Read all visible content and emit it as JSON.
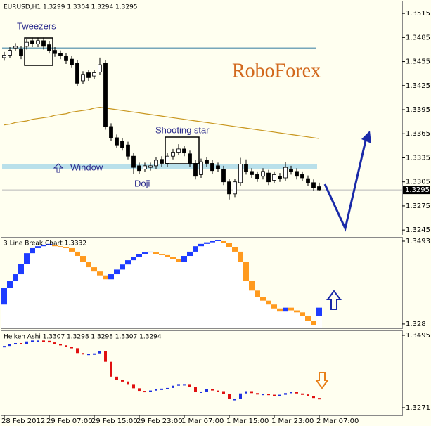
{
  "chart_data": [
    {
      "type": "candlestick",
      "title": "EURUSD,H1 1.3299 1.3304 1.3294 1.3295",
      "watermark": "RoboForex",
      "annotations": [
        "Tweezers",
        "Shooting star",
        "Window",
        "Doji"
      ],
      "categories": [
        "28 Feb 2012",
        null,
        null,
        null,
        null,
        null,
        null,
        null,
        "29 Feb 07:00",
        null,
        null,
        null,
        null,
        null,
        null,
        null,
        "29 Feb 15:00",
        null,
        null,
        null,
        null,
        null,
        null,
        null,
        "29 Feb 23:00",
        null,
        null,
        null,
        null,
        null,
        null,
        null,
        "1 Mar 07:00",
        null,
        null,
        null,
        null,
        null,
        null,
        null,
        "1 Mar 15:00",
        null,
        null,
        null,
        null,
        null,
        null,
        null,
        "1 Mar 23:00",
        null,
        null,
        null,
        null,
        null,
        null,
        null,
        "2 Mar 07:00"
      ],
      "open": [
        1.346,
        1.3463,
        1.3472,
        1.347,
        1.3474,
        1.3481,
        1.3477,
        1.3481,
        1.3476,
        1.3469,
        1.3465,
        1.3462,
        1.3458,
        1.3453,
        1.3431,
        1.3441,
        1.3437,
        1.3442,
        1.3453,
        1.3374,
        1.336,
        1.3356,
        1.3351,
        1.3337,
        1.3325,
        1.3321,
        1.3323,
        1.3325,
        1.3333,
        1.3328,
        1.3337,
        1.3342,
        1.3346,
        1.334,
        1.3328,
        1.3314,
        1.3332,
        1.3328,
        1.3325,
        1.3321,
        1.3305,
        1.329,
        1.3304,
        1.3327,
        1.3318,
        1.3314,
        1.3312,
        1.3316,
        1.3307,
        1.3312,
        1.331,
        1.3321,
        1.3318,
        1.3314,
        1.3309,
        1.3304,
        1.3299
      ],
      "high": [
        1.3467,
        1.3473,
        1.3478,
        1.3474,
        1.3483,
        1.3485,
        1.3485,
        1.3485,
        1.348,
        1.3473,
        1.3469,
        1.3466,
        1.3462,
        1.3457,
        1.3443,
        1.3445,
        1.3445,
        1.346,
        1.3457,
        1.3378,
        1.3364,
        1.336,
        1.3355,
        1.3341,
        1.3329,
        1.3329,
        1.3329,
        1.3336,
        1.3337,
        1.3341,
        1.3346,
        1.3352,
        1.335,
        1.3344,
        1.3332,
        1.3334,
        1.3336,
        1.3332,
        1.3329,
        1.3325,
        1.3309,
        1.3309,
        1.3335,
        1.3333,
        1.3322,
        1.3318,
        1.3322,
        1.332,
        1.3318,
        1.3316,
        1.333,
        1.3325,
        1.3322,
        1.3318,
        1.3313,
        1.3308,
        1.3304
      ],
      "low": [
        1.3456,
        1.3459,
        1.3468,
        1.3458,
        1.347,
        1.3473,
        1.3473,
        1.347,
        1.3465,
        1.3461,
        1.3458,
        1.3452,
        1.3447,
        1.3424,
        1.3427,
        1.3431,
        1.3433,
        1.3438,
        1.337,
        1.3356,
        1.3347,
        1.3344,
        1.3333,
        1.3315,
        1.3315,
        1.3317,
        1.3319,
        1.3321,
        1.3324,
        1.3324,
        1.3333,
        1.3338,
        1.3337,
        1.3324,
        1.3308,
        1.331,
        1.3324,
        1.3315,
        1.3317,
        1.3301,
        1.3283,
        1.3286,
        1.33,
        1.3314,
        1.331,
        1.3305,
        1.3308,
        1.3301,
        1.3303,
        1.3305,
        1.3306,
        1.3314,
        1.3308,
        1.3306,
        1.33,
        1.3294,
        1.3294
      ],
      "close": [
        1.3463,
        1.3469,
        1.3474,
        1.3462,
        1.3479,
        1.3477,
        1.3481,
        1.3474,
        1.3469,
        1.3465,
        1.3462,
        1.3456,
        1.3451,
        1.3428,
        1.3439,
        1.3435,
        1.3441,
        1.3451,
        1.3374,
        1.336,
        1.3351,
        1.3348,
        1.3337,
        1.3323,
        1.3319,
        1.3325,
        1.3325,
        1.3332,
        1.3328,
        1.3337,
        1.3342,
        1.3346,
        1.3341,
        1.3328,
        1.3312,
        1.333,
        1.3328,
        1.3319,
        1.3321,
        1.3305,
        1.329,
        1.3305,
        1.3327,
        1.3318,
        1.3314,
        1.3309,
        1.3318,
        1.3305,
        1.3314,
        1.3309,
        1.3323,
        1.3318,
        1.3312,
        1.331,
        1.3304,
        1.3298,
        1.3295
      ],
      "up_color": "#ffffff",
      "down_color": "#000000",
      "ma": {
        "color": "#c8961e",
        "values": [
          1.3376,
          1.3377,
          1.3379,
          1.338,
          1.3381,
          1.3383,
          1.3384,
          1.3385,
          1.3386,
          1.3388,
          1.3389,
          1.339,
          1.3392,
          1.3393,
          1.3394,
          1.3395,
          1.3397,
          1.3398,
          1.3397,
          1.3396,
          1.3395,
          1.3394,
          1.3393,
          1.3392,
          1.3391,
          1.339,
          1.3389,
          1.3388,
          1.3387,
          1.3386,
          1.3385,
          1.3384,
          1.3383,
          1.3382,
          1.3381,
          1.338,
          1.3379,
          1.3378,
          1.3377,
          1.3376,
          1.3375,
          1.3374,
          1.3373,
          1.3372,
          1.3371,
          1.337,
          1.3369,
          1.3368,
          1.3367,
          1.3366,
          1.3365,
          1.3364,
          1.3363,
          1.3362,
          1.3361,
          1.336,
          1.3359
        ]
      },
      "level": {
        "value": 1.3472,
        "color": "#4a8aa8"
      },
      "band": [
        1.3321,
        1.3327
      ],
      "last_price": 1.3295,
      "ylim": [
        1.3239,
        1.353
      ],
      "yticks": [
        1.3515,
        1.3485,
        1.3455,
        1.3425,
        1.3395,
        1.3365,
        1.3335,
        1.3305,
        1.3275,
        1.3245
      ]
    },
    {
      "type": "linebreak",
      "title": "3 Line Break Chart 1.3332",
      "open": [
        1.333,
        1.3372,
        1.339,
        1.3408,
        1.3435,
        1.3462,
        1.3475,
        1.348,
        1.3484,
        1.3484,
        1.348,
        1.3477,
        1.3475,
        1.3466,
        1.3455,
        1.344,
        1.3426,
        1.3415,
        1.3405,
        1.3395,
        1.3408,
        1.342,
        1.3433,
        1.3444,
        1.3453,
        1.346,
        1.3464,
        1.3464,
        1.346,
        1.3457,
        1.3453,
        1.3446,
        1.344,
        1.3455,
        1.3466,
        1.348,
        1.3486,
        1.349,
        1.3493,
        1.3493,
        1.3488,
        1.3478,
        1.3466,
        1.344,
        1.339,
        1.3366,
        1.335,
        1.334,
        1.333,
        1.332,
        1.3312,
        1.3322,
        1.3315,
        1.331,
        1.33,
        1.3288,
        1.33
      ],
      "close": [
        1.3372,
        1.339,
        1.3408,
        1.3435,
        1.3462,
        1.3475,
        1.348,
        1.3484,
        1.3486,
        1.348,
        1.3477,
        1.3475,
        1.3466,
        1.3455,
        1.344,
        1.3426,
        1.3415,
        1.3405,
        1.3395,
        1.3408,
        1.342,
        1.3433,
        1.3444,
        1.3453,
        1.346,
        1.3464,
        1.3466,
        1.346,
        1.3457,
        1.3453,
        1.3446,
        1.344,
        1.3455,
        1.3466,
        1.348,
        1.3486,
        1.349,
        1.3493,
        1.3495,
        1.3488,
        1.3478,
        1.3466,
        1.344,
        1.339,
        1.3366,
        1.335,
        1.334,
        1.333,
        1.332,
        1.3312,
        1.3322,
        1.3315,
        1.331,
        1.33,
        1.3288,
        1.3278,
        1.3322
      ],
      "up_color": "#1e3cff",
      "down_color": "#ff9a1e",
      "ylim": [
        1.3269,
        1.3502
      ],
      "yticks": [
        1.3493,
        1.328
      ]
    },
    {
      "type": "heikenashi",
      "title": "Heiken Ashi 1.3307 1.3298 1.3298 1.3307 1.3294",
      "open": [
        1.3458,
        1.3462,
        1.3467,
        1.3471,
        1.3468,
        1.3476,
        1.3479,
        1.3479,
        1.3478,
        1.3473,
        1.3468,
        1.3464,
        1.3459,
        1.3455,
        1.344,
        1.3436,
        1.3438,
        1.3439,
        1.3446,
        1.3413,
        1.3367,
        1.3356,
        1.3352,
        1.3344,
        1.3331,
        1.3323,
        1.3322,
        1.3324,
        1.3328,
        1.333,
        1.3332,
        1.3339,
        1.3344,
        1.3344,
        1.3335,
        1.332,
        1.3321,
        1.3329,
        1.3324,
        1.3322,
        1.3313,
        1.3297,
        1.3298,
        1.3315,
        1.3322,
        1.3316,
        1.3312,
        1.3314,
        1.3311,
        1.331,
        1.3311,
        1.3316,
        1.332,
        1.3315,
        1.3312,
        1.3307,
        1.3301
      ],
      "close": [
        1.3462,
        1.3467,
        1.3471,
        1.3468,
        1.3476,
        1.3479,
        1.3479,
        1.3478,
        1.3473,
        1.3468,
        1.3464,
        1.3459,
        1.3455,
        1.344,
        1.3436,
        1.3438,
        1.3439,
        1.3446,
        1.3413,
        1.3367,
        1.3356,
        1.3352,
        1.3344,
        1.3331,
        1.3323,
        1.3322,
        1.3324,
        1.3328,
        1.333,
        1.3332,
        1.3339,
        1.3344,
        1.3344,
        1.3335,
        1.332,
        1.3321,
        1.3329,
        1.3324,
        1.3322,
        1.3313,
        1.3297,
        1.3298,
        1.3315,
        1.3322,
        1.3316,
        1.3312,
        1.3314,
        1.3311,
        1.331,
        1.3311,
        1.3316,
        1.332,
        1.3315,
        1.3312,
        1.3307,
        1.3301,
        1.3298
      ],
      "up_color": "#1e30e0",
      "down_color": "#e01010",
      "ylim": [
        1.3247,
        1.3508
      ],
      "yticks": [
        1.3495,
        1.3271
      ]
    }
  ]
}
